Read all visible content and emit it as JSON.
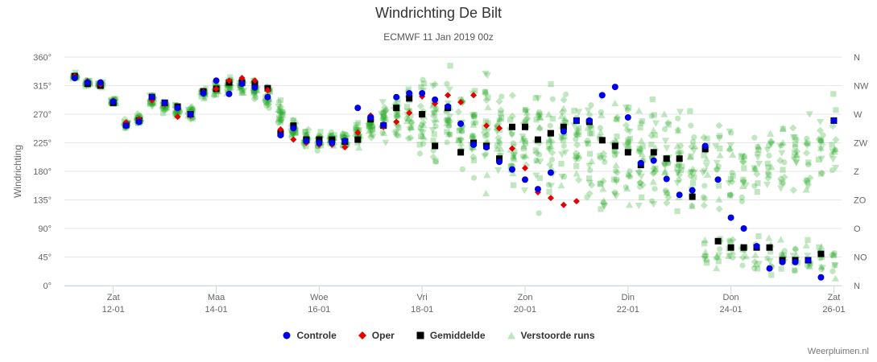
{
  "chart_data": {
    "type": "scatter",
    "title": "Windrichting De Bilt",
    "subtitle": "ECMWF 11 Jan 2019 00z",
    "ylabel": "Windrichting",
    "xlabel": "",
    "ylim": [
      0,
      360
    ],
    "y_ticks": [
      {
        "value": 0,
        "label": "0°"
      },
      {
        "value": 45,
        "label": "45°"
      },
      {
        "value": 90,
        "label": "90°"
      },
      {
        "value": 135,
        "label": "135°"
      },
      {
        "value": 180,
        "label": "180°"
      },
      {
        "value": 225,
        "label": "225°"
      },
      {
        "value": 270,
        "label": "270°"
      },
      {
        "value": 315,
        "label": "315°"
      },
      {
        "value": 360,
        "label": "360°"
      }
    ],
    "y2_ticks": [
      {
        "value": 0,
        "label": "N"
      },
      {
        "value": 45,
        "label": "NO"
      },
      {
        "value": 90,
        "label": "O"
      },
      {
        "value": 135,
        "label": "ZO"
      },
      {
        "value": 180,
        "label": "Z"
      },
      {
        "value": 225,
        "label": "ZW"
      },
      {
        "value": 270,
        "label": "W"
      },
      {
        "value": 315,
        "label": "NW"
      },
      {
        "value": 360,
        "label": "N"
      }
    ],
    "x_unit": "days since 11 Jan 2019 00:00",
    "xlim": [
      0.05,
      15.15
    ],
    "x_ticks": [
      {
        "value": 1,
        "day": "Zat",
        "date": "12-01"
      },
      {
        "value": 3,
        "day": "Maa",
        "date": "14-01"
      },
      {
        "value": 5,
        "day": "Woe",
        "date": "16-01"
      },
      {
        "value": 7,
        "day": "Vri",
        "date": "18-01"
      },
      {
        "value": 9,
        "day": "Zon",
        "date": "20-01"
      },
      {
        "value": 11,
        "day": "Din",
        "date": "22-01"
      },
      {
        "value": 13,
        "day": "Don",
        "date": "24-01"
      },
      {
        "value": 15,
        "day": "Zat",
        "date": "26-01"
      }
    ],
    "grid": true,
    "legend_position": "bottom-center",
    "colors": {
      "controle": "#0000e6",
      "oper": "#e60000",
      "gemiddelde": "#000000",
      "ensemble": "#22aa22",
      "grid": "#e6e6e6",
      "axis": "#ccd6eb"
    },
    "series": [
      {
        "key": "controle",
        "name": "Controle",
        "marker": "circle",
        "points": [
          [
            0.25,
            327
          ],
          [
            0.5,
            320
          ],
          [
            0.75,
            320
          ],
          [
            1.0,
            290
          ],
          [
            1.25,
            252
          ],
          [
            1.5,
            258
          ],
          [
            1.75,
            297
          ],
          [
            2.0,
            288
          ],
          [
            2.25,
            280
          ],
          [
            2.5,
            270
          ],
          [
            2.75,
            303
          ],
          [
            3.0,
            323
          ],
          [
            3.25,
            302
          ],
          [
            3.5,
            318
          ],
          [
            3.75,
            312
          ],
          [
            4.0,
            297
          ],
          [
            4.25,
            237
          ],
          [
            4.5,
            248
          ],
          [
            4.75,
            228
          ],
          [
            5.0,
            225
          ],
          [
            5.25,
            225
          ],
          [
            5.5,
            228
          ],
          [
            5.75,
            280
          ],
          [
            6.0,
            265
          ],
          [
            6.25,
            253
          ],
          [
            6.5,
            297
          ],
          [
            6.75,
            303
          ],
          [
            7.0,
            303
          ],
          [
            7.25,
            293
          ],
          [
            7.5,
            282
          ],
          [
            7.75,
            255
          ],
          [
            8.0,
            222
          ],
          [
            8.25,
            218
          ],
          [
            8.5,
            195
          ],
          [
            8.75,
            183
          ],
          [
            9.0,
            167
          ],
          [
            9.25,
            152
          ],
          [
            9.5,
            178
          ],
          [
            9.75,
            243
          ],
          [
            10.0,
            260
          ],
          [
            10.25,
            260
          ],
          [
            10.5,
            300
          ],
          [
            10.75,
            313
          ],
          [
            11.0,
            265
          ],
          [
            11.25,
            193
          ],
          [
            11.5,
            197
          ],
          [
            11.75,
            168
          ],
          [
            12.0,
            143
          ],
          [
            12.25,
            150
          ],
          [
            12.5,
            220
          ],
          [
            12.75,
            167
          ],
          [
            13.0,
            107
          ],
          [
            13.25,
            90
          ],
          [
            13.5,
            62
          ],
          [
            13.75,
            27
          ],
          [
            14.0,
            37
          ],
          [
            14.25,
            37
          ],
          [
            14.5,
            40
          ],
          [
            14.75,
            13
          ],
          [
            15.0,
            260
          ]
        ]
      },
      {
        "key": "oper",
        "name": "Oper",
        "marker": "diamond",
        "points": [
          [
            0.25,
            330
          ],
          [
            0.5,
            322
          ],
          [
            0.75,
            317
          ],
          [
            1.0,
            291
          ],
          [
            1.25,
            257
          ],
          [
            1.5,
            262
          ],
          [
            1.75,
            292
          ],
          [
            2.0,
            286
          ],
          [
            2.25,
            266
          ],
          [
            2.5,
            268
          ],
          [
            2.75,
            305
          ],
          [
            3.0,
            310
          ],
          [
            3.25,
            323
          ],
          [
            3.5,
            327
          ],
          [
            3.75,
            323
          ],
          [
            4.0,
            308
          ],
          [
            4.25,
            246
          ],
          [
            4.5,
            230
          ],
          [
            4.75,
            225
          ],
          [
            5.0,
            222
          ],
          [
            5.25,
            222
          ],
          [
            5.5,
            218
          ],
          [
            5.75,
            241
          ],
          [
            6.0,
            268
          ],
          [
            6.25,
            250
          ],
          [
            6.5,
            258
          ],
          [
            6.75,
            272
          ],
          [
            7.0,
            298
          ],
          [
            7.25,
            287
          ],
          [
            7.5,
            300
          ],
          [
            7.75,
            289
          ],
          [
            8.0,
            300
          ],
          [
            8.25,
            252
          ],
          [
            8.5,
            248
          ],
          [
            8.75,
            216
          ],
          [
            9.0,
            185
          ],
          [
            9.25,
            147
          ],
          [
            9.5,
            138
          ],
          [
            9.75,
            127
          ],
          [
            10.0,
            133
          ]
        ]
      },
      {
        "key": "gemiddelde",
        "name": "Gemiddelde",
        "marker": "square",
        "points": [
          [
            0.25,
            330
          ],
          [
            0.5,
            318
          ],
          [
            0.75,
            315
          ],
          [
            1.0,
            288
          ],
          [
            1.25,
            253
          ],
          [
            1.5,
            260
          ],
          [
            1.75,
            297
          ],
          [
            2.0,
            288
          ],
          [
            2.25,
            282
          ],
          [
            2.5,
            270
          ],
          [
            2.75,
            306
          ],
          [
            3.0,
            310
          ],
          [
            3.25,
            320
          ],
          [
            3.5,
            320
          ],
          [
            3.75,
            318
          ],
          [
            4.0,
            311
          ],
          [
            4.25,
            240
          ],
          [
            4.5,
            252
          ],
          [
            4.75,
            230
          ],
          [
            5.0,
            230
          ],
          [
            5.25,
            230
          ],
          [
            5.5,
            227
          ],
          [
            5.75,
            230
          ],
          [
            6.0,
            262
          ],
          [
            6.25,
            252
          ],
          [
            6.5,
            280
          ],
          [
            6.75,
            295
          ],
          [
            7.0,
            270
          ],
          [
            7.25,
            220
          ],
          [
            7.5,
            280
          ],
          [
            7.75,
            210
          ],
          [
            8.0,
            225
          ],
          [
            8.25,
            220
          ],
          [
            8.5,
            200
          ],
          [
            8.75,
            250
          ],
          [
            9.0,
            250
          ],
          [
            9.25,
            230
          ],
          [
            9.5,
            240
          ],
          [
            9.75,
            250
          ],
          [
            10.0,
            260
          ],
          [
            10.25,
            258
          ],
          [
            10.5,
            229
          ],
          [
            10.75,
            220
          ],
          [
            11.0,
            210
          ],
          [
            11.25,
            190
          ],
          [
            11.5,
            210
          ],
          [
            11.75,
            200
          ],
          [
            12.0,
            200
          ],
          [
            12.25,
            140
          ],
          [
            12.5,
            215
          ],
          [
            12.75,
            70
          ],
          [
            13.0,
            60
          ],
          [
            13.25,
            60
          ],
          [
            13.5,
            60
          ],
          [
            13.75,
            60
          ],
          [
            14.0,
            40
          ],
          [
            14.25,
            40
          ],
          [
            14.5,
            40
          ],
          [
            14.75,
            50
          ],
          [
            15.0,
            260
          ]
        ]
      },
      {
        "key": "ensemble",
        "name": "Verstoorde runs",
        "marker": "triangle",
        "note": "per time step: centre and spread of the perturbed members (degrees); a second cluster is shown from day 12.5 on",
        "groups": [
          [
            0.25,
            330,
            8,
            0,
            0
          ],
          [
            0.5,
            320,
            7,
            0,
            0
          ],
          [
            0.75,
            317,
            7,
            0,
            0
          ],
          [
            1.0,
            290,
            8,
            0,
            0
          ],
          [
            1.25,
            255,
            9,
            0,
            0
          ],
          [
            1.5,
            262,
            12,
            0,
            0
          ],
          [
            1.75,
            293,
            14,
            0,
            0
          ],
          [
            2.0,
            282,
            16,
            0,
            0
          ],
          [
            2.25,
            275,
            16,
            0,
            0
          ],
          [
            2.5,
            272,
            14,
            0,
            0
          ],
          [
            2.75,
            303,
            12,
            0,
            0
          ],
          [
            3.0,
            310,
            14,
            0,
            0
          ],
          [
            3.25,
            316,
            16,
            0,
            0
          ],
          [
            3.5,
            316,
            18,
            0,
            0
          ],
          [
            3.75,
            310,
            22,
            0,
            0
          ],
          [
            4.0,
            300,
            28,
            0,
            0
          ],
          [
            4.25,
            270,
            40,
            0,
            0
          ],
          [
            4.5,
            245,
            24,
            0,
            0
          ],
          [
            4.75,
            232,
            22,
            0,
            0
          ],
          [
            5.0,
            230,
            20,
            0,
            0
          ],
          [
            5.25,
            230,
            20,
            0,
            0
          ],
          [
            5.5,
            228,
            20,
            0,
            0
          ],
          [
            5.75,
            238,
            24,
            0,
            0
          ],
          [
            6.0,
            250,
            32,
            0,
            0
          ],
          [
            6.25,
            262,
            42,
            0,
            0
          ],
          [
            6.5,
            270,
            55,
            0,
            0
          ],
          [
            6.75,
            270,
            70,
            0,
            0
          ],
          [
            7.0,
            265,
            85,
            0,
            0
          ],
          [
            7.25,
            260,
            95,
            0,
            0
          ],
          [
            7.5,
            258,
            100,
            0,
            0
          ],
          [
            7.75,
            255,
            105,
            0,
            0
          ],
          [
            8.0,
            250,
            110,
            0,
            0
          ],
          [
            8.25,
            245,
            110,
            0,
            0
          ],
          [
            8.5,
            240,
            115,
            0,
            0
          ],
          [
            8.75,
            235,
            120,
            0,
            0
          ],
          [
            9.0,
            230,
            120,
            0,
            0
          ],
          [
            9.25,
            228,
            120,
            0,
            0
          ],
          [
            9.5,
            225,
            125,
            0,
            0
          ],
          [
            9.75,
            225,
            125,
            0,
            0
          ],
          [
            10.0,
            222,
            125,
            0,
            0
          ],
          [
            10.25,
            220,
            125,
            0,
            0
          ],
          [
            10.5,
            218,
            125,
            0,
            0
          ],
          [
            10.75,
            215,
            125,
            0,
            0
          ],
          [
            11.0,
            212,
            125,
            0,
            0
          ],
          [
            11.25,
            208,
            125,
            0,
            0
          ],
          [
            11.5,
            205,
            125,
            0,
            0
          ],
          [
            11.75,
            200,
            125,
            0,
            0
          ],
          [
            12.0,
            195,
            125,
            0,
            0
          ],
          [
            12.25,
            190,
            125,
            0,
            0
          ],
          [
            12.5,
            190,
            90,
            55,
            40
          ],
          [
            12.75,
            185,
            90,
            55,
            45
          ],
          [
            13.0,
            180,
            90,
            55,
            45
          ],
          [
            13.25,
            185,
            90,
            55,
            45
          ],
          [
            13.5,
            190,
            90,
            50,
            45
          ],
          [
            13.75,
            195,
            90,
            50,
            45
          ],
          [
            14.0,
            200,
            90,
            50,
            45
          ],
          [
            14.25,
            205,
            90,
            45,
            45
          ],
          [
            14.5,
            210,
            90,
            45,
            45
          ],
          [
            14.75,
            220,
            90,
            45,
            45
          ],
          [
            15.0,
            230,
            90,
            45,
            45
          ]
        ]
      }
    ]
  },
  "credits": "Weerpluimen.nl"
}
